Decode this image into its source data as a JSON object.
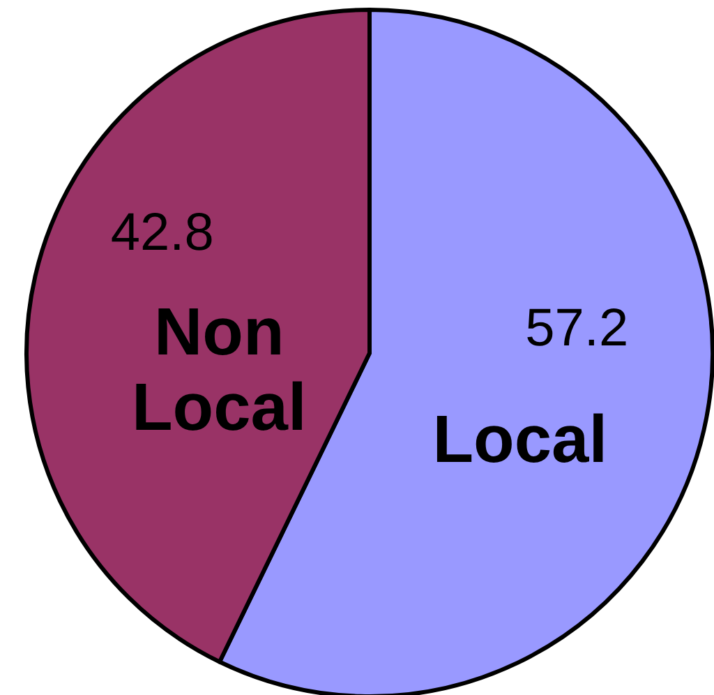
{
  "chart_data": {
    "type": "pie",
    "categories": [
      "Local",
      "Non Local"
    ],
    "values": [
      57.2,
      42.8
    ],
    "colors": [
      "#9999ff",
      "#993366"
    ],
    "data_labels": true
  }
}
